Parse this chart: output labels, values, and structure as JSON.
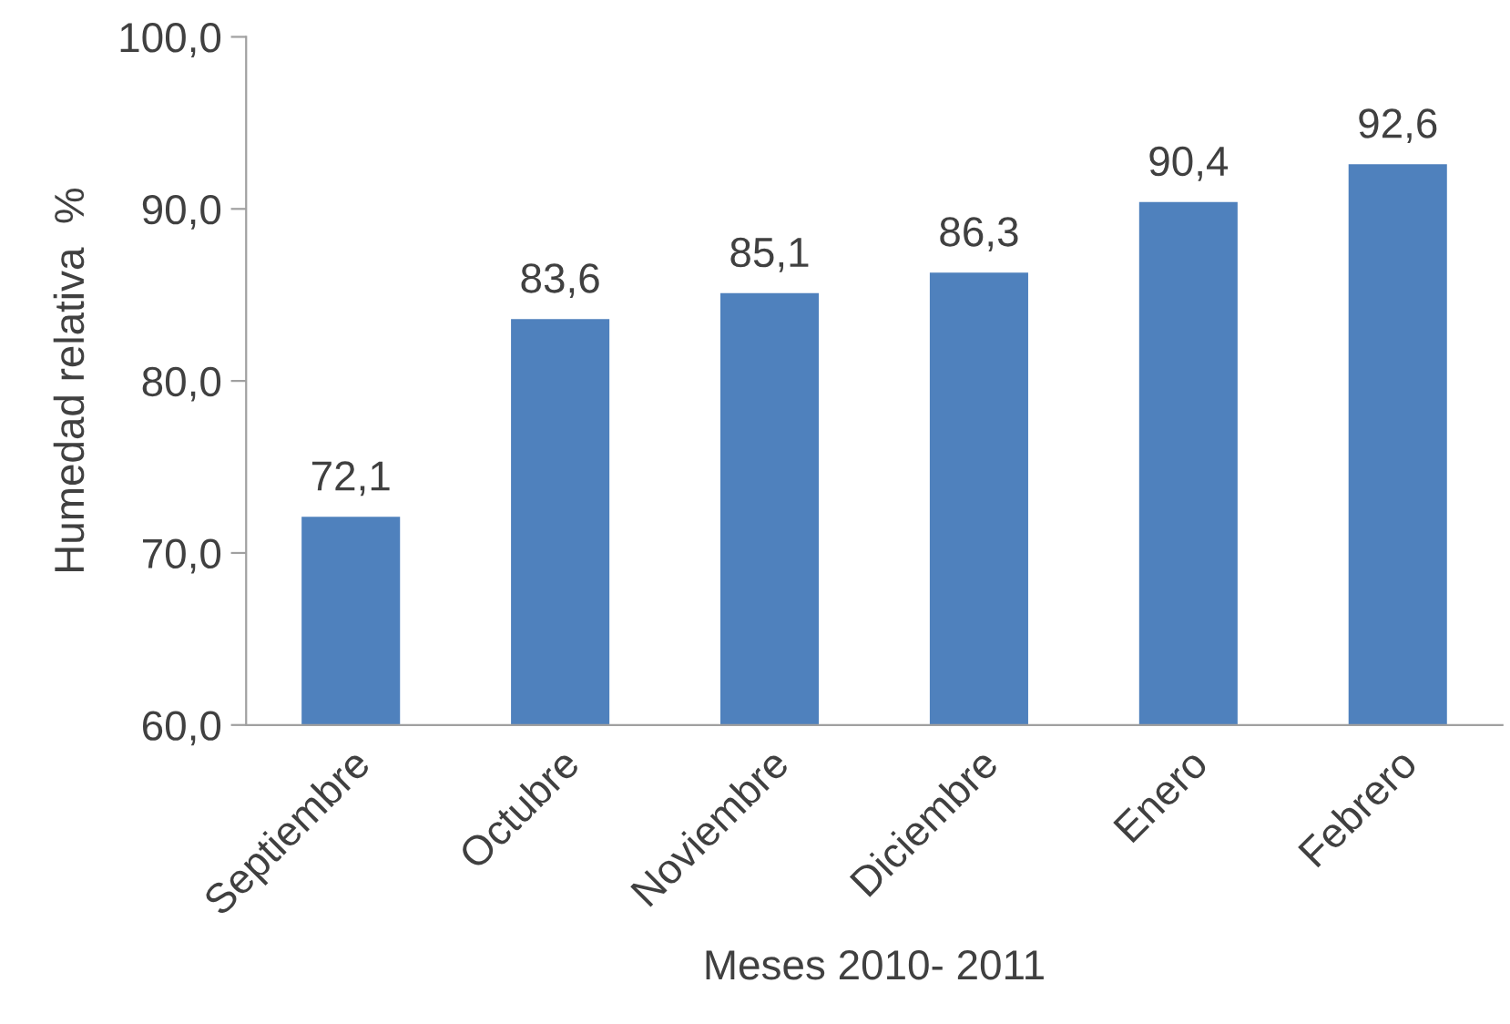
{
  "chart_data": {
    "type": "bar",
    "xlabel": "Meses 2010- 2011",
    "ylabel": "Humedad relativa  %",
    "categories": [
      "Septiembre",
      "Octubre",
      "Noviembre",
      "Diciembre",
      "Enero",
      "Febrero"
    ],
    "values": [
      72.1,
      83.6,
      85.1,
      86.3,
      90.4,
      92.6
    ],
    "value_labels": [
      "72,1",
      "83,6",
      "85,1",
      "86,3",
      "90,4",
      "92,6"
    ],
    "color": "#4f81bd",
    "ylim": [
      60,
      100
    ],
    "yticks": [
      {
        "value": 60,
        "label": "60,0"
      },
      {
        "value": 70,
        "label": "70,0"
      },
      {
        "value": 80,
        "label": "80,0"
      },
      {
        "value": 90,
        "label": "90,0"
      },
      {
        "value": 100,
        "label": "100,0"
      }
    ]
  }
}
